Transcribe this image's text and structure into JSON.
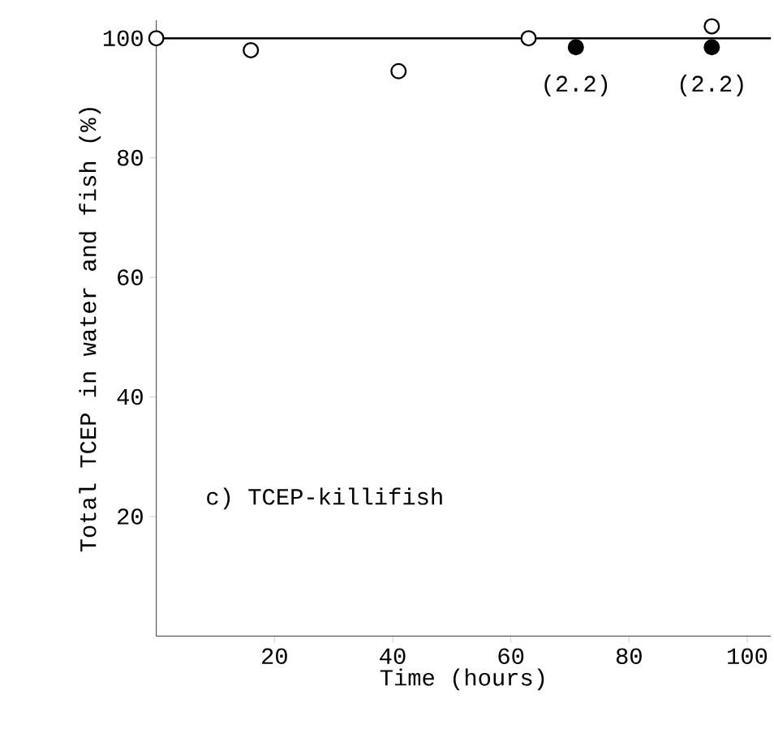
{
  "chart_data": {
    "type": "scatter",
    "xlabel": "Time (hours)",
    "ylabel": "Total TCEP in water and fish (%)",
    "xlim": [
      0,
      104
    ],
    "ylim": [
      0,
      103
    ],
    "xticks": [
      20,
      40,
      60,
      80,
      100
    ],
    "yticks": [
      20,
      40,
      60,
      80,
      100
    ],
    "grid": false,
    "marker": "circle",
    "series": [
      {
        "color": "#ffffff",
        "x": [
          0,
          16,
          41,
          63,
          94
        ],
        "values": [
          100,
          98,
          94.5,
          100,
          102
        ]
      },
      {
        "color": "#000000",
        "x": [
          71,
          94
        ],
        "values": [
          98.5,
          98.5
        ]
      }
    ],
    "ref_lines": [
      {
        "axis": "y",
        "value": 100,
        "color": "#000000"
      }
    ],
    "annotations": [
      {
        "text": "(2.2)",
        "x": 71,
        "y": 98.5
      },
      {
        "text": "(2.2)",
        "x": 94,
        "y": 98.5
      },
      "c) TCEP-killifish"
    ]
  }
}
